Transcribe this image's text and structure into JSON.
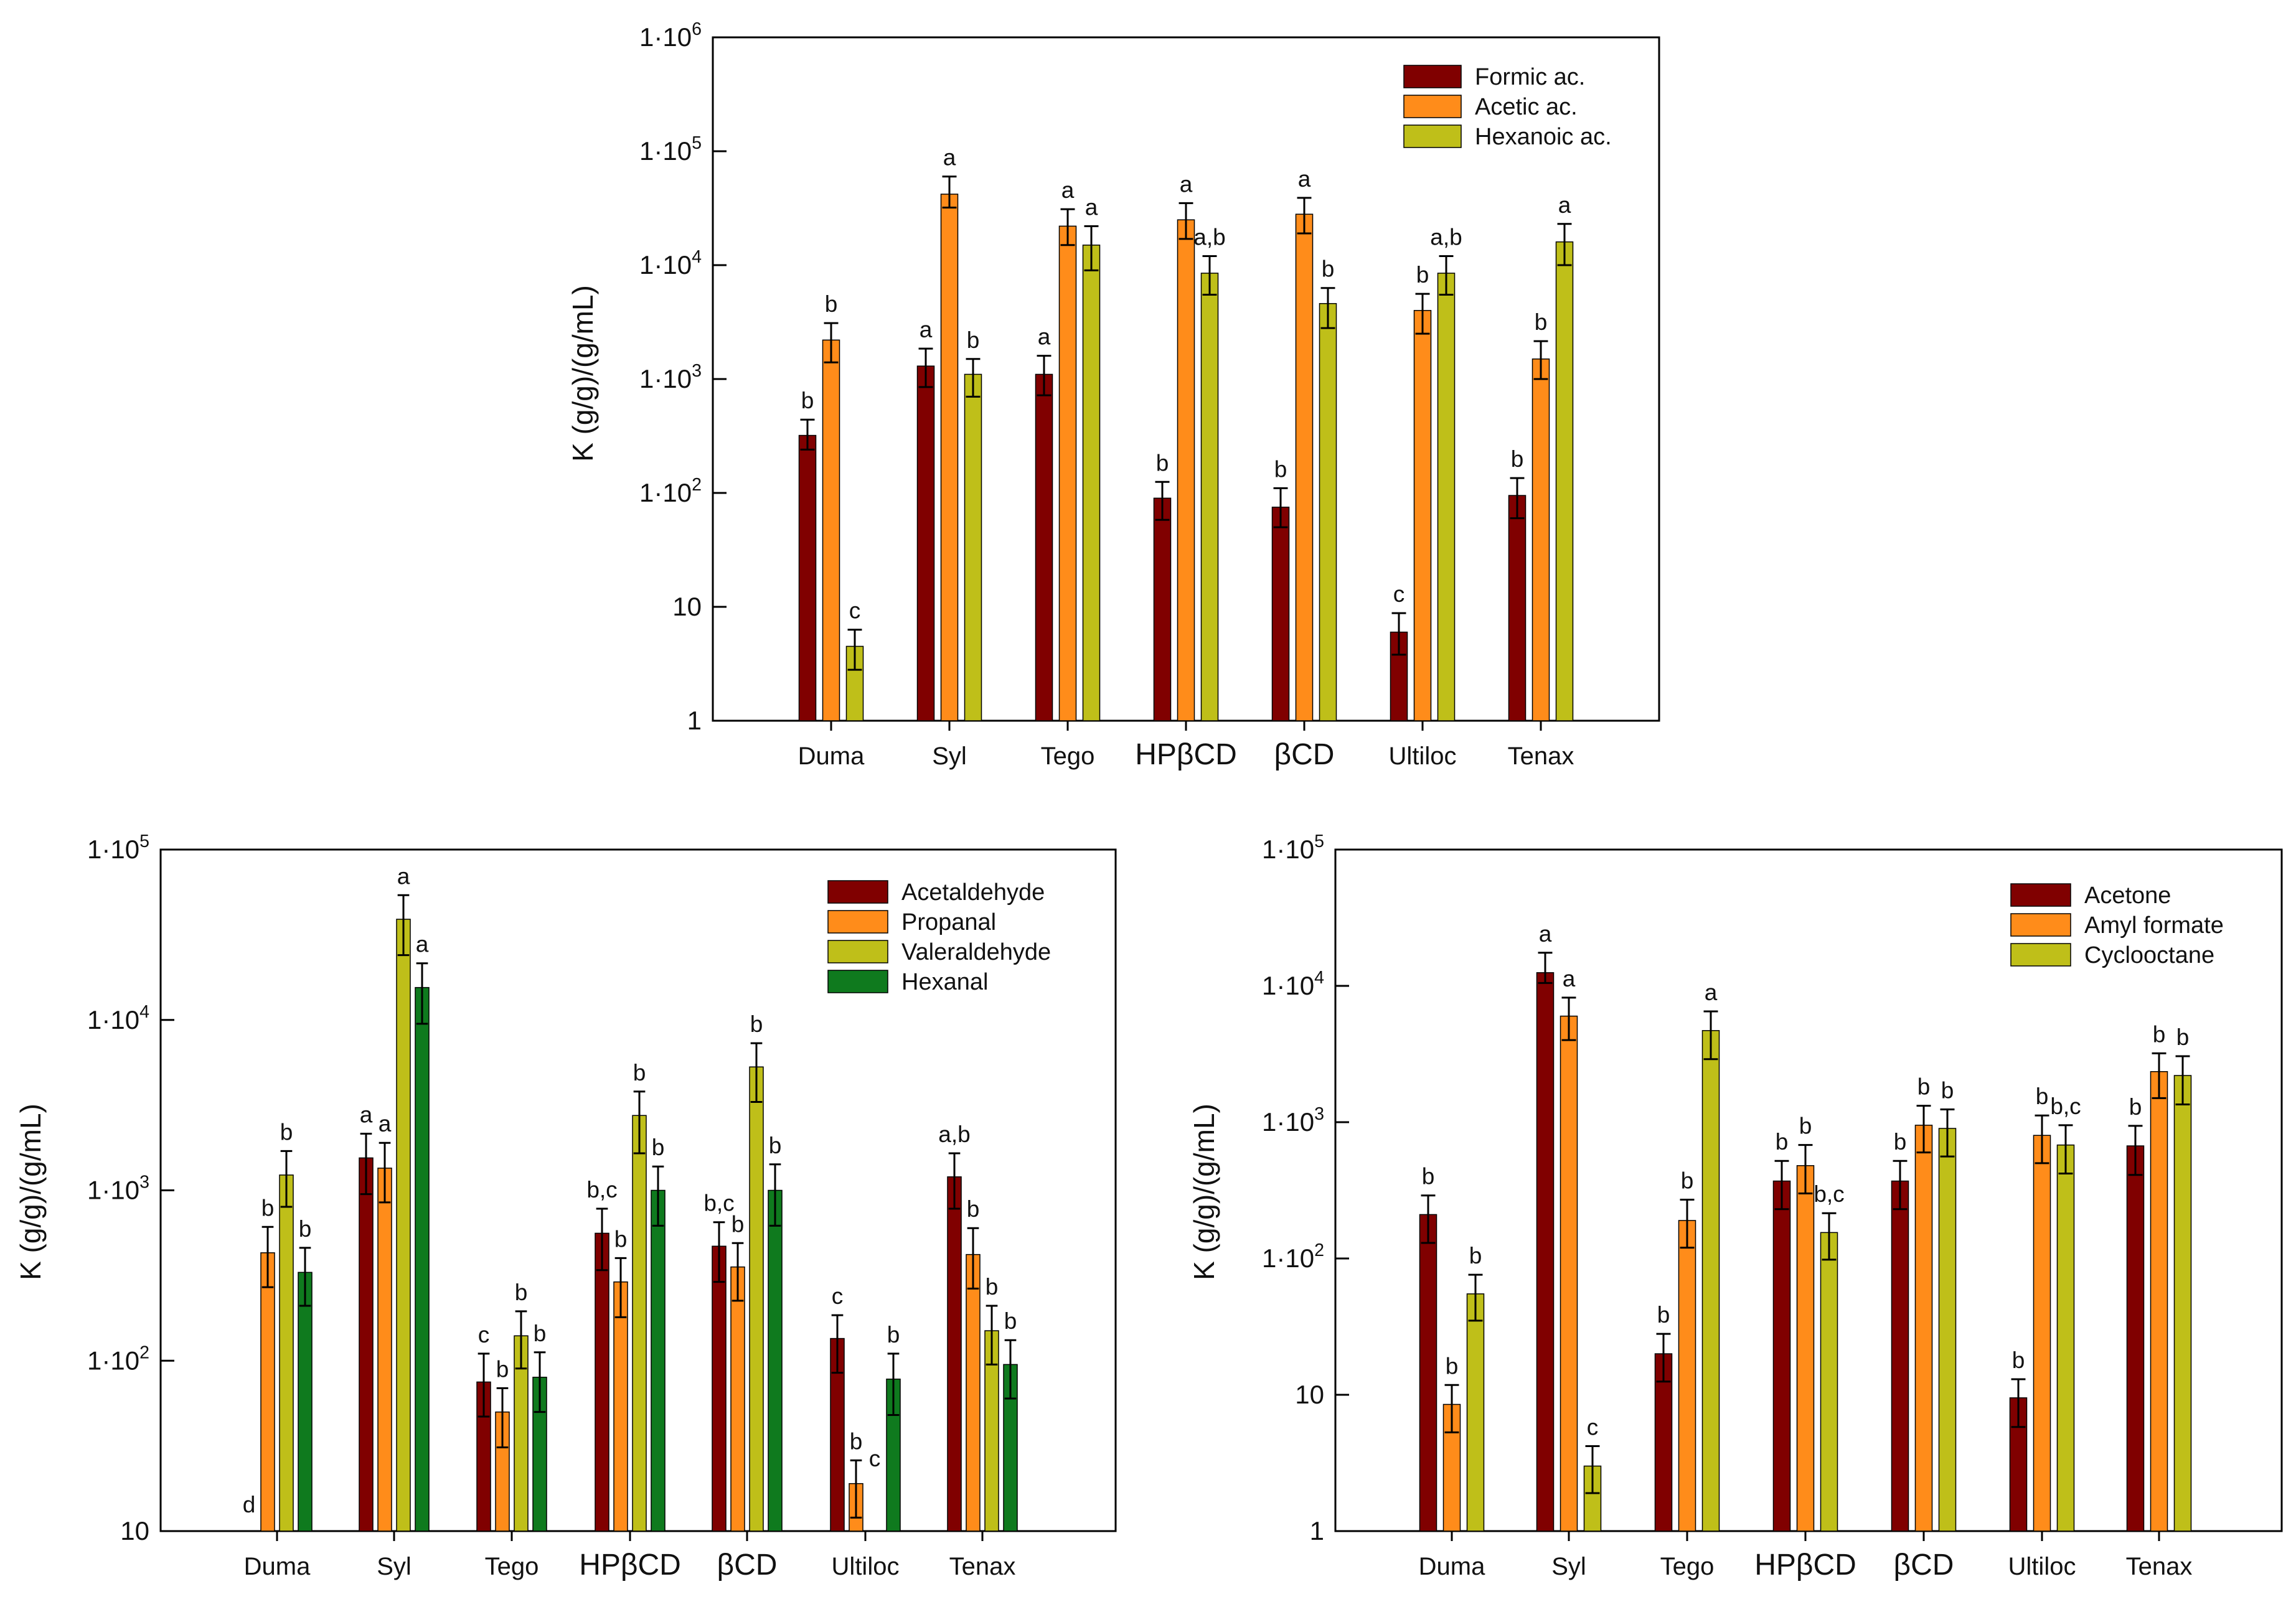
{
  "colors": {
    "dark_red": "#800000",
    "orange": "#FF8C1A",
    "olive_yellow": "#BFBF19",
    "green": "#0F7A1E",
    "axis": "#000000"
  },
  "chart_data": [
    {
      "id": "acids",
      "type": "bar",
      "scale": "log",
      "ylabel": "K (g/g)/(g/mL)",
      "ylim": [
        1,
        1000000
      ],
      "yticks": [
        {
          "value": 1,
          "base": "1",
          "exp": ""
        },
        {
          "value": 10,
          "base": "10",
          "exp": ""
        },
        {
          "value": 100,
          "base": "1·10",
          "exp": "2"
        },
        {
          "value": 1000,
          "base": "1·10",
          "exp": "3"
        },
        {
          "value": 10000,
          "base": "1·10",
          "exp": "4"
        },
        {
          "value": 100000,
          "base": "1·10",
          "exp": "5"
        },
        {
          "value": 1000000,
          "base": "1·10",
          "exp": "6"
        }
      ],
      "categories": [
        "Duma",
        "Syl",
        "Tego",
        "HPβCD",
        "βCD",
        "Ultiloc",
        "Tenax"
      ],
      "legend_position": "top-right",
      "series": [
        {
          "name": "Formic ac.",
          "color": "#800000",
          "values": [
            320,
            1300,
            1100,
            90,
            75,
            6,
            95
          ],
          "err_low": [
            240,
            850,
            720,
            58,
            50,
            3.8,
            60
          ],
          "err_high": [
            440,
            1850,
            1600,
            125,
            110,
            8.8,
            135
          ],
          "letters": [
            "b",
            "a",
            "a",
            "b",
            "b",
            "c",
            "b"
          ]
        },
        {
          "name": "Acetic ac.",
          "color": "#FF8C1A",
          "values": [
            2200,
            42000,
            22000,
            25000,
            28000,
            4000,
            1500
          ],
          "err_low": [
            1400,
            32000,
            15000,
            17000,
            19000,
            2500,
            1000
          ],
          "err_high": [
            3100,
            60000,
            31000,
            35000,
            39000,
            5600,
            2150
          ],
          "letters": [
            "b",
            "a",
            "a",
            "a",
            "a",
            "b",
            "b"
          ]
        },
        {
          "name": "Hexanoic ac.",
          "color": "#BFBF19",
          "values": [
            4.5,
            1100,
            15000,
            8500,
            4600,
            8500,
            16000
          ],
          "err_low": [
            2.8,
            700,
            9000,
            5500,
            2800,
            5500,
            10000
          ],
          "err_high": [
            6.3,
            1500,
            22000,
            12000,
            6300,
            12000,
            23000
          ],
          "letters": [
            "c",
            "b",
            "a",
            "a,b",
            "b",
            "a,b",
            "a"
          ]
        }
      ]
    },
    {
      "id": "aldehydes",
      "type": "bar",
      "scale": "log",
      "ylabel": "K (g/g)/(g/mL)",
      "ylim": [
        10,
        100000
      ],
      "yticks": [
        {
          "value": 10,
          "base": "10",
          "exp": ""
        },
        {
          "value": 100,
          "base": "1·10",
          "exp": "2"
        },
        {
          "value": 1000,
          "base": "1·10",
          "exp": "3"
        },
        {
          "value": 10000,
          "base": "1·10",
          "exp": "4"
        },
        {
          "value": 100000,
          "base": "1·10",
          "exp": "5"
        }
      ],
      "categories": [
        "Duma",
        "Syl",
        "Tego",
        "HPβCD",
        "βCD",
        "Ultiloc",
        "Tenax"
      ],
      "legend_position": "top-right",
      "series": [
        {
          "name": "Acetaldehyde",
          "color": "#800000",
          "values": [
            null,
            1550,
            75,
            560,
            470,
            135,
            1200
          ],
          "err_low": [
            null,
            950,
            47,
            340,
            290,
            85,
            780
          ],
          "err_high": [
            null,
            2150,
            110,
            780,
            650,
            185,
            1650
          ],
          "letters": [
            "d",
            "a",
            "c",
            "b,c",
            "b,c",
            "c",
            "a,b"
          ]
        },
        {
          "name": "Propanal",
          "color": "#FF8C1A",
          "values": [
            430,
            1350,
            50,
            290,
            355,
            19,
            420
          ],
          "err_low": [
            270,
            850,
            31,
            180,
            225,
            12,
            265
          ],
          "err_high": [
            610,
            1900,
            69,
            400,
            490,
            26,
            600
          ],
          "letters": [
            "b",
            "a",
            "b",
            "b",
            "b",
            "b",
            "b"
          ]
        },
        {
          "name": "Valeraldehyde",
          "color": "#BFBF19",
          "values": [
            1230,
            39000,
            140,
            2750,
            5300,
            null,
            150
          ],
          "err_low": [
            800,
            24000,
            90,
            1650,
            3300,
            null,
            95
          ],
          "err_high": [
            1700,
            54000,
            195,
            3800,
            7300,
            null,
            210
          ],
          "letters": [
            "b",
            "a",
            "b",
            "b",
            "b",
            "c",
            "b"
          ]
        },
        {
          "name": "Hexanal",
          "color": "#0F7A1E",
          "values": [
            330,
            15500,
            80,
            1000,
            1000,
            78,
            95
          ],
          "err_low": [
            210,
            9500,
            50,
            620,
            620,
            48,
            60
          ],
          "err_high": [
            460,
            21500,
            112,
            1380,
            1420,
            110,
            132
          ],
          "letters": [
            "b",
            "a",
            "b",
            "b",
            "b",
            "b",
            "b"
          ]
        }
      ]
    },
    {
      "id": "others",
      "type": "bar",
      "scale": "log",
      "ylabel": "K (g/g)/(g/mL)",
      "ylim": [
        1,
        100000
      ],
      "yticks": [
        {
          "value": 1,
          "base": "1",
          "exp": ""
        },
        {
          "value": 10,
          "base": "10",
          "exp": ""
        },
        {
          "value": 100,
          "base": "1·10",
          "exp": "2"
        },
        {
          "value": 1000,
          "base": "1·10",
          "exp": "3"
        },
        {
          "value": 10000,
          "base": "1·10",
          "exp": "4"
        },
        {
          "value": 100000,
          "base": "1·10",
          "exp": "5"
        }
      ],
      "categories": [
        "Duma",
        "Syl",
        "Tego",
        "HPβCD",
        "βCD",
        "Ultiloc",
        "Tenax"
      ],
      "legend_position": "top-right",
      "series": [
        {
          "name": "Acetone",
          "color": "#800000",
          "values": [
            210,
            12500,
            20,
            370,
            370,
            9.5,
            670
          ],
          "err_low": [
            130,
            10500,
            12.5,
            230,
            230,
            5.8,
            410
          ],
          "err_high": [
            290,
            17500,
            28,
            520,
            520,
            13,
            940
          ],
          "letters": [
            "b",
            "a",
            "b",
            "b",
            "b",
            "b",
            "b"
          ]
        },
        {
          "name": "Amyl formate",
          "color": "#FF8C1A",
          "values": [
            8.5,
            6000,
            190,
            480,
            950,
            800,
            2350
          ],
          "err_low": [
            5.3,
            4000,
            120,
            300,
            600,
            500,
            1500
          ],
          "err_high": [
            11.8,
            8200,
            270,
            680,
            1320,
            1120,
            3200
          ],
          "letters": [
            "b",
            "a",
            "b",
            "b",
            "b",
            "b",
            "b"
          ]
        },
        {
          "name": "Cyclooctane",
          "color": "#BFBF19",
          "values": [
            55,
            3,
            4700,
            155,
            900,
            680,
            2200
          ],
          "err_low": [
            35,
            1.9,
            2900,
            98,
            560,
            420,
            1350
          ],
          "err_high": [
            76,
            4.2,
            6500,
            215,
            1240,
            950,
            3050
          ],
          "letters": [
            "b",
            "c",
            "a",
            "b,c",
            "b",
            "b,c",
            "b"
          ]
        }
      ]
    }
  ]
}
